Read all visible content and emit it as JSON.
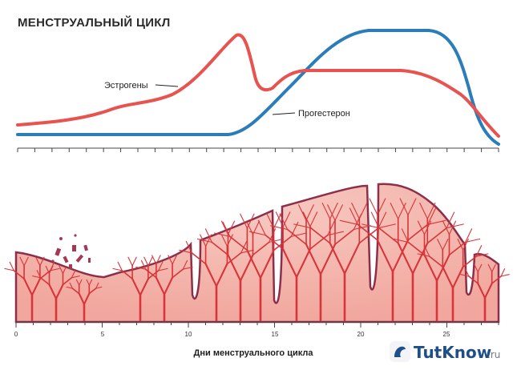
{
  "title": "МЕНСТРУАЛЬНЫЙ ЦИКЛ",
  "hormones": {
    "estrogen": {
      "label": "Эстрогены",
      "color": "#e8524f"
    },
    "progesterone": {
      "label": "Прогестерон",
      "color": "#2a7db8"
    }
  },
  "axis": {
    "xlabel": "Дни менструального цикла",
    "ticks": [
      "0",
      "5",
      "10",
      "15",
      "20",
      "25"
    ]
  },
  "watermark": {
    "brand": "TutKnow",
    "suffix": ".ru"
  },
  "colors": {
    "endometrium": "#f4b5ad",
    "vessels": "#d8343a",
    "outline": "#8c2f4a"
  }
}
